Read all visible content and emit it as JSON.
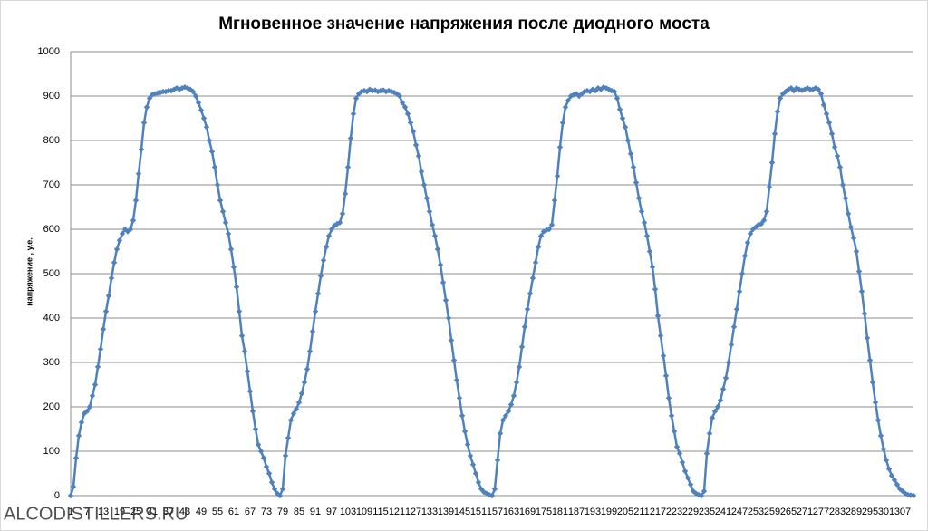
{
  "chart_data": {
    "type": "line",
    "title": "Мгновенное значение напряжения после диодного моста",
    "ylabel": "напряжение , у.е.",
    "watermark": "ALCODISTILLERS.RU",
    "color": "#4f81bd",
    "grid": true,
    "ylim": [
      0,
      1000
    ],
    "yticks": [
      0,
      100,
      200,
      300,
      400,
      500,
      600,
      700,
      800,
      900,
      1000
    ],
    "categories": [
      1,
      null,
      null,
      null,
      null,
      null,
      7,
      null,
      null,
      null,
      null,
      null,
      13,
      null,
      null,
      null,
      null,
      null,
      19,
      null,
      null,
      null,
      null,
      null,
      25,
      null,
      null,
      null,
      null,
      null,
      31,
      null,
      null,
      null,
      null,
      null,
      37,
      null,
      null,
      null,
      null,
      null,
      43,
      null,
      null,
      null,
      null,
      null,
      49,
      null,
      null,
      null,
      null,
      null,
      55,
      null,
      null,
      null,
      null,
      null,
      61,
      null,
      null,
      null,
      null,
      null,
      67,
      null,
      null,
      null,
      null,
      null,
      73,
      null,
      null,
      null,
      null,
      null,
      79,
      null,
      null,
      null,
      null,
      null,
      85,
      null,
      null,
      null,
      null,
      null,
      91,
      null,
      null,
      null,
      null,
      null,
      97,
      null,
      null,
      null,
      null,
      null,
      103,
      null,
      null,
      null,
      null,
      null,
      109,
      null,
      null,
      null,
      null,
      null,
      115,
      null,
      null,
      null,
      null,
      null,
      121,
      null,
      null,
      null,
      null,
      null,
      127,
      null,
      null,
      null,
      null,
      null,
      133,
      null,
      null,
      null,
      null,
      null,
      139,
      null,
      null,
      null,
      null,
      null,
      145,
      null,
      null,
      null,
      null,
      null,
      151,
      null,
      null,
      null,
      null,
      null,
      157,
      null,
      null,
      null,
      null,
      null,
      163,
      null,
      null,
      null,
      null,
      null,
      169,
      null,
      null,
      null,
      null,
      null,
      175,
      null,
      null,
      null,
      null,
      null,
      181,
      null,
      null,
      null,
      null,
      null,
      187,
      null,
      null,
      null,
      null,
      null,
      193,
      null,
      null,
      null,
      null,
      null,
      199,
      null,
      null,
      null,
      null,
      null,
      205,
      null,
      null,
      null,
      null,
      null,
      211,
      null,
      null,
      null,
      null,
      null,
      217,
      null,
      null,
      null,
      null,
      null,
      223,
      null,
      null,
      null,
      null,
      null,
      229,
      null,
      null,
      null,
      null,
      null,
      235,
      null,
      null,
      null,
      null,
      null,
      241,
      null,
      null,
      null,
      null,
      null,
      247,
      null,
      null,
      null,
      null,
      null,
      253,
      null,
      null,
      null,
      null,
      null,
      259,
      null,
      null,
      null,
      null,
      null,
      265,
      null,
      null,
      null,
      null,
      null,
      271,
      null,
      null,
      null,
      null,
      null,
      277,
      null,
      null,
      null,
      null,
      null,
      283,
      null,
      null,
      null,
      null,
      null,
      289,
      null,
      null,
      null,
      null,
      null,
      295,
      null,
      null,
      null,
      null,
      null,
      301,
      null,
      null,
      null,
      null,
      null,
      307,
      null,
      null,
      null,
      null
    ],
    "values": [
      0,
      20,
      85,
      135,
      165,
      185,
      190,
      200,
      225,
      250,
      290,
      330,
      375,
      415,
      450,
      490,
      525,
      555,
      575,
      590,
      600,
      595,
      600,
      620,
      665,
      725,
      780,
      840,
      875,
      895,
      903,
      905,
      907,
      908,
      910,
      910,
      912,
      912,
      915,
      918,
      915,
      918,
      920,
      918,
      915,
      910,
      900,
      885,
      868,
      850,
      830,
      800,
      775,
      740,
      700,
      665,
      640,
      615,
      590,
      555,
      515,
      470,
      415,
      360,
      325,
      280,
      235,
      190,
      150,
      115,
      100,
      85,
      65,
      50,
      30,
      15,
      5,
      0,
      15,
      90,
      130,
      170,
      185,
      195,
      210,
      230,
      255,
      285,
      325,
      370,
      415,
      455,
      495,
      530,
      560,
      585,
      600,
      608,
      612,
      615,
      635,
      680,
      740,
      805,
      860,
      895,
      905,
      910,
      912,
      910,
      915,
      912,
      913,
      910,
      912,
      913,
      910,
      912,
      910,
      908,
      905,
      900,
      885,
      875,
      860,
      840,
      820,
      790,
      765,
      730,
      700,
      670,
      640,
      610,
      585,
      555,
      520,
      480,
      440,
      400,
      350,
      305,
      260,
      220,
      180,
      145,
      115,
      90,
      70,
      50,
      30,
      15,
      8,
      5,
      2,
      0,
      15,
      80,
      140,
      170,
      180,
      190,
      205,
      225,
      255,
      290,
      335,
      380,
      420,
      455,
      490,
      525,
      560,
      585,
      595,
      598,
      600,
      610,
      665,
      720,
      785,
      840,
      875,
      890,
      900,
      903,
      905,
      900,
      905,
      910,
      912,
      910,
      915,
      912,
      918,
      915,
      920,
      918,
      915,
      912,
      910,
      895,
      870,
      850,
      830,
      800,
      770,
      740,
      705,
      670,
      640,
      615,
      585,
      550,
      515,
      465,
      405,
      360,
      315,
      270,
      220,
      180,
      145,
      110,
      95,
      75,
      55,
      40,
      25,
      10,
      5,
      2,
      0,
      10,
      95,
      140,
      175,
      190,
      200,
      215,
      240,
      265,
      300,
      340,
      380,
      420,
      460,
      500,
      540,
      570,
      590,
      600,
      605,
      610,
      612,
      620,
      640,
      695,
      750,
      815,
      865,
      895,
      905,
      910,
      915,
      918,
      912,
      918,
      915,
      913,
      915,
      918,
      915,
      915,
      918,
      915,
      905,
      880,
      860,
      840,
      815,
      785,
      765,
      740,
      700,
      670,
      635,
      605,
      580,
      550,
      505,
      460,
      410,
      355,
      305,
      255,
      210,
      170,
      135,
      105,
      80,
      60,
      45,
      35,
      25,
      15,
      10,
      5,
      2,
      1,
      0
    ]
  }
}
